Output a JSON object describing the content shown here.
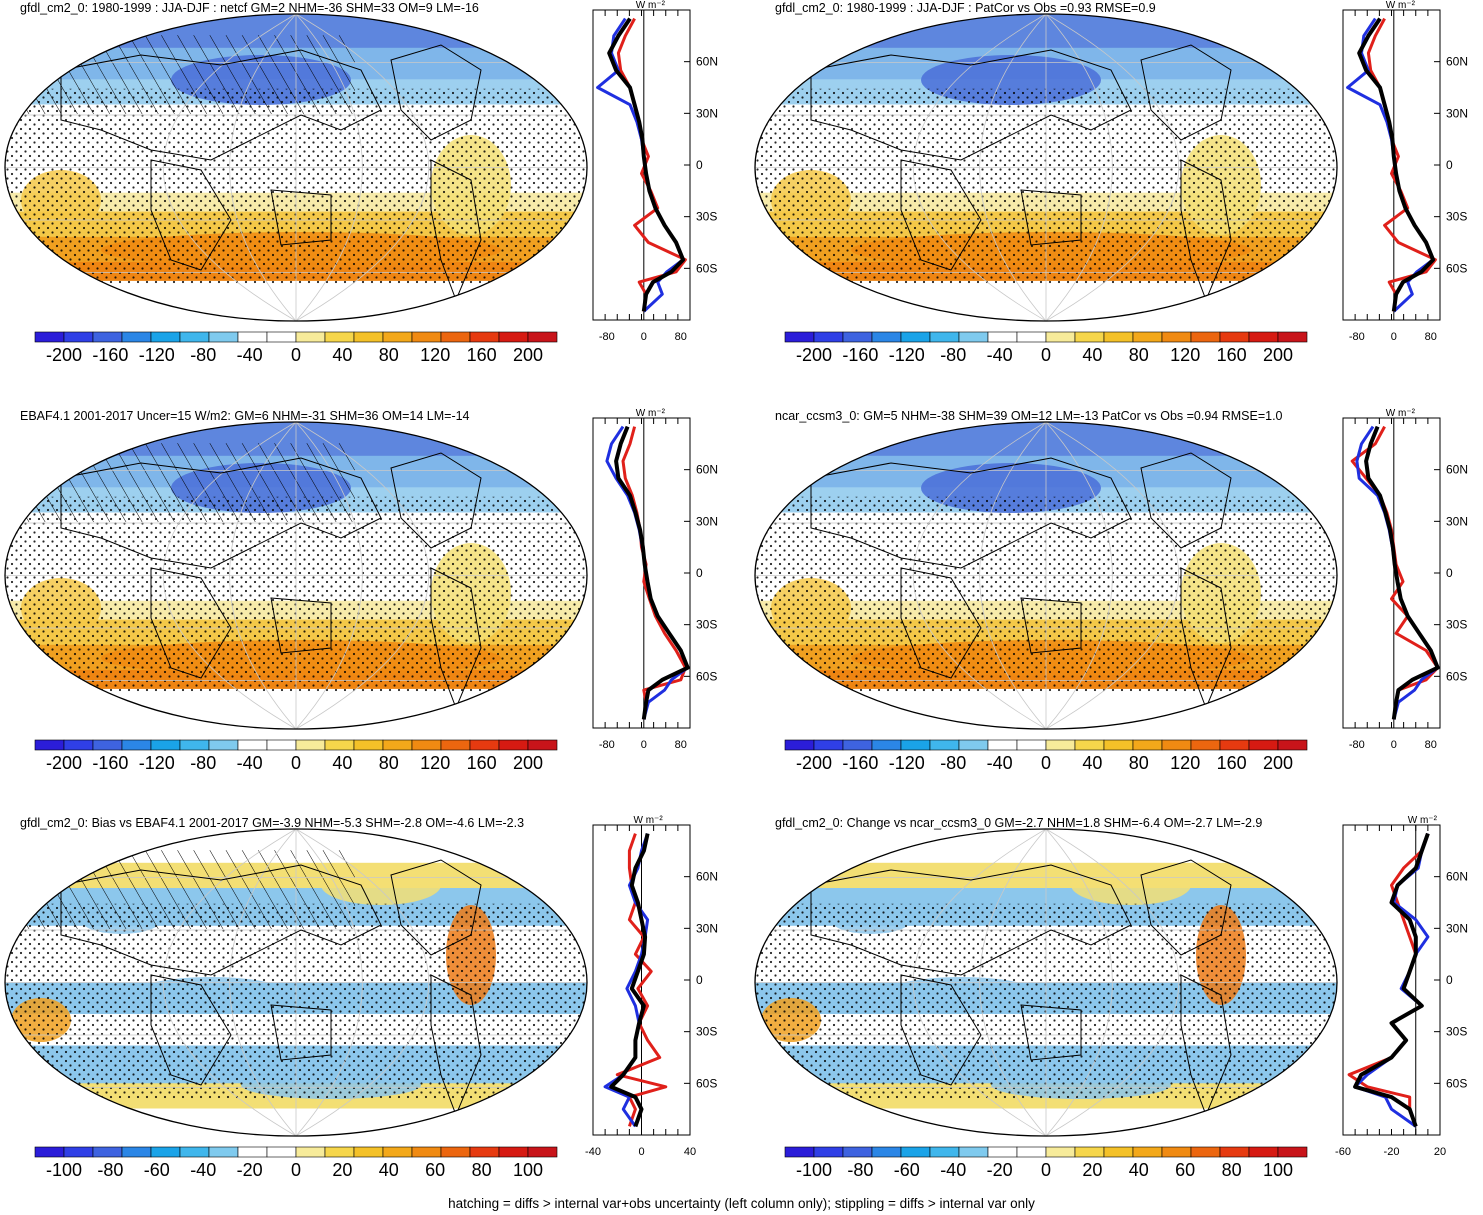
{
  "footer": "hatching = diffs > internal var+obs uncertainty (left column only); stippling = diffs > internal var only",
  "colorbar_colors_a": [
    "#2b1dd9",
    "#2f3fe6",
    "#3e63e0",
    "#2b86e6",
    "#1aa3e8",
    "#3fb6ec",
    "#7fcaee",
    "#ffffff",
    "#ffffff",
    "#f7eb9a",
    "#f6d64b",
    "#f4c128",
    "#f3a81a",
    "#f08a12",
    "#ec660f",
    "#e63a10",
    "#d61a12",
    "#c8141a"
  ],
  "colorbar_colors_b": [
    "#2b1dd9",
    "#2f3fe6",
    "#3e63e0",
    "#2b86e6",
    "#1aa3e8",
    "#3fb6ec",
    "#7fcaee",
    "#ffffff",
    "#ffffff",
    "#f7eb9a",
    "#f6d64b",
    "#f4c128",
    "#f3a81a",
    "#f08a12",
    "#ec660f",
    "#e63a10",
    "#d61a12",
    "#c8141a"
  ],
  "panels": [
    {
      "title": "gfdl_cm2_0: 1980-1999 : JJA-DJF : netcf GM=2 NHM=-36 SHM=33 OM=9 LM=-16",
      "cbar_labels": [
        "-200",
        "-160",
        "-120",
        "-80",
        "-40",
        "0",
        "40",
        "80",
        "120",
        "160",
        "200"
      ],
      "zonal_unit": "W m⁻²",
      "lat_labels": [
        "60N",
        "30N",
        "0",
        "30S",
        "60S"
      ],
      "x_labels": [
        "-80",
        "0",
        "80"
      ],
      "x_range": [
        -110,
        100
      ],
      "hatched": true
    },
    {
      "title": "gfdl_cm2_0: 1980-1999 : JJA-DJF : PatCor vs Obs =0.93 RMSE=0.9",
      "cbar_labels": [
        "-200",
        "-160",
        "-120",
        "-80",
        "-40",
        "0",
        "40",
        "80",
        "120",
        "160",
        "200"
      ],
      "zonal_unit": "W m⁻²",
      "lat_labels": [
        "60N",
        "30N",
        "0",
        "30S",
        "60S"
      ],
      "x_labels": [
        "-80",
        "0",
        "80"
      ],
      "x_range": [
        -110,
        100
      ],
      "hatched": false
    },
    {
      "title": "EBAF4.1 2001-2017 Uncer=15 W/m2: GM=6 NHM=-31 SHM=36 OM=14 LM=-14",
      "cbar_labels": [
        "-200",
        "-160",
        "-120",
        "-80",
        "-40",
        "0",
        "40",
        "80",
        "120",
        "160",
        "200"
      ],
      "zonal_unit": "W m⁻²",
      "lat_labels": [
        "60N",
        "30N",
        "0",
        "30S",
        "60S"
      ],
      "x_labels": [
        "-80",
        "0",
        "80"
      ],
      "x_range": [
        -110,
        100
      ],
      "hatched": true
    },
    {
      "title": "ncar_ccsm3_0: GM=5 NHM=-38 SHM=39 OM=12 LM=-13 PatCor vs Obs =0.94 RMSE=1.0",
      "cbar_labels": [
        "-200",
        "-160",
        "-120",
        "-80",
        "-40",
        "0",
        "40",
        "80",
        "120",
        "160",
        "200"
      ],
      "zonal_unit": "W m⁻²",
      "lat_labels": [
        "60N",
        "30N",
        "0",
        "30S",
        "60S"
      ],
      "x_labels": [
        "-80",
        "0",
        "80"
      ],
      "x_range": [
        -110,
        100
      ],
      "hatched": false
    },
    {
      "title": "gfdl_cm2_0: Bias vs EBAF4.1 2001-2017 GM=-3.9 NHM=-5.3 SHM=-2.8 OM=-4.6 LM=-2.3",
      "cbar_labels": [
        "-100",
        "-80",
        "-60",
        "-40",
        "-20",
        "0",
        "20",
        "40",
        "60",
        "80",
        "100"
      ],
      "zonal_unit": "W m⁻²",
      "lat_labels": [
        "60N",
        "30N",
        "0",
        "30S",
        "60S"
      ],
      "x_labels": [
        "-40",
        "0",
        "40"
      ],
      "x_range": [
        -40,
        40
      ],
      "hatched": true
    },
    {
      "title": "gfdl_cm2_0: Change vs ncar_ccsm3_0 GM=-2.7 NHM=1.8 SHM=-6.4 OM=-2.7 LM=-2.9",
      "cbar_labels": [
        "-100",
        "-80",
        "-60",
        "-40",
        "-20",
        "0",
        "20",
        "40",
        "60",
        "80",
        "100"
      ],
      "zonal_unit": "W m⁻²",
      "lat_labels": [
        "60N",
        "30N",
        "0",
        "30S",
        "60S"
      ],
      "x_labels": [
        "-60",
        "-20",
        "20"
      ],
      "x_range": [
        -60,
        20
      ],
      "hatched": false
    }
  ],
  "chart_data": [
    {
      "type": "line",
      "title": "gfdl_cm2_0: 1980-1999 : JJA-DJF : netcf GM=2 NHM=-36 SHM=33 OM=9 LM=-16",
      "xlabel": "W m⁻²",
      "xlim": [
        -110,
        100
      ],
      "ylim": [
        -90,
        90
      ],
      "series": [
        {
          "color": "#000000",
          "lat": [
            85,
            75,
            65,
            55,
            45,
            35,
            25,
            15,
            5,
            -5,
            -15,
            -25,
            -35,
            -45,
            -55,
            -62,
            -68,
            -75,
            -85
          ],
          "values": [
            -30,
            -55,
            -75,
            -60,
            -30,
            -20,
            -10,
            -3,
            0,
            5,
            12,
            25,
            45,
            70,
            85,
            60,
            20,
            5,
            0
          ]
        },
        {
          "color": "#e0201a",
          "lat": [
            85,
            75,
            65,
            55,
            45,
            35,
            25,
            15,
            5,
            -5,
            -15,
            -25,
            -35,
            -45,
            -55,
            -62,
            -68,
            -75,
            -85
          ],
          "values": [
            -20,
            -40,
            -55,
            -50,
            -30,
            -20,
            -12,
            -5,
            10,
            -5,
            15,
            30,
            -20,
            10,
            90,
            70,
            -10,
            5,
            0
          ]
        },
        {
          "color": "#1f2fe0",
          "lat": [
            85,
            75,
            65,
            55,
            45,
            35,
            25,
            15,
            5,
            -5,
            -15,
            -25,
            -35,
            -45,
            -55,
            -62,
            -68,
            -75,
            -85
          ],
          "values": [
            -40,
            -65,
            -70,
            -55,
            -100,
            -30,
            -15,
            -5,
            0,
            5,
            12,
            25,
            45,
            70,
            85,
            50,
            30,
            40,
            0
          ]
        }
      ]
    },
    {
      "type": "line",
      "title": "gfdl_cm2_0: 1980-1999 : JJA-DJF : PatCor vs Obs =0.93 RMSE=0.9",
      "xlabel": "W m⁻²",
      "xlim": [
        -110,
        100
      ],
      "ylim": [
        -90,
        90
      ],
      "series": [
        {
          "color": "#000000",
          "lat": [
            85,
            75,
            65,
            55,
            45,
            35,
            25,
            15,
            5,
            -5,
            -15,
            -25,
            -35,
            -45,
            -55,
            -62,
            -68,
            -75,
            -85
          ],
          "values": [
            -30,
            -55,
            -75,
            -60,
            -30,
            -20,
            -10,
            -3,
            0,
            5,
            12,
            25,
            45,
            70,
            85,
            60,
            20,
            5,
            0
          ]
        },
        {
          "color": "#e0201a",
          "lat": [
            85,
            75,
            65,
            55,
            45,
            35,
            25,
            15,
            5,
            -5,
            -15,
            -25,
            -35,
            -45,
            -55,
            -62,
            -68,
            -75,
            -85
          ],
          "values": [
            -20,
            -40,
            -55,
            -50,
            -30,
            -20,
            -12,
            -5,
            10,
            -5,
            15,
            30,
            -20,
            10,
            90,
            70,
            -10,
            5,
            0
          ]
        },
        {
          "color": "#1f2fe0",
          "lat": [
            85,
            75,
            65,
            55,
            45,
            35,
            25,
            15,
            5,
            -5,
            -15,
            -25,
            -35,
            -45,
            -55,
            -62,
            -68,
            -75,
            -85
          ],
          "values": [
            -40,
            -65,
            -70,
            -55,
            -100,
            -30,
            -15,
            -5,
            0,
            5,
            12,
            25,
            45,
            70,
            85,
            50,
            30,
            40,
            0
          ]
        }
      ]
    },
    {
      "type": "line",
      "title": "EBAF4.1 2001-2017 Uncer=15 W/m2: GM=6 NHM=-31 SHM=36 OM=14 LM=-14",
      "xlabel": "W m⁻²",
      "xlim": [
        -110,
        100
      ],
      "ylim": [
        -90,
        90
      ],
      "series": [
        {
          "color": "#000000",
          "lat": [
            85,
            75,
            65,
            55,
            45,
            35,
            25,
            15,
            5,
            -5,
            -15,
            -25,
            -35,
            -45,
            -55,
            -62,
            -68,
            -75,
            -85
          ],
          "values": [
            -35,
            -50,
            -60,
            -55,
            -30,
            -18,
            -8,
            -2,
            2,
            8,
            15,
            30,
            55,
            80,
            95,
            40,
            10,
            5,
            0
          ]
        },
        {
          "color": "#e0201a",
          "lat": [
            85,
            75,
            65,
            55,
            45,
            35,
            25,
            15,
            5,
            -5,
            -15,
            -25,
            -35,
            -45,
            -55,
            -62,
            -68,
            -75,
            -85
          ],
          "values": [
            -20,
            -30,
            -45,
            -40,
            -25,
            -15,
            -8,
            -5,
            5,
            0,
            12,
            25,
            45,
            70,
            90,
            80,
            0,
            5,
            0
          ]
        },
        {
          "color": "#1f2fe0",
          "lat": [
            85,
            75,
            65,
            55,
            45,
            35,
            25,
            15,
            5,
            -5,
            -15,
            -25,
            -35,
            -45,
            -55,
            -62,
            -68,
            -75,
            -85
          ],
          "values": [
            -45,
            -70,
            -80,
            -60,
            -35,
            -20,
            -10,
            -3,
            2,
            8,
            15,
            30,
            55,
            80,
            95,
            60,
            45,
            10,
            0
          ]
        }
      ]
    },
    {
      "type": "line",
      "title": "ncar_ccsm3_0: GM=5 NHM=-38 SHM=39 OM=12 LM=-13 PatCor vs Obs =0.94 RMSE=1.0",
      "xlabel": "W m⁻²",
      "xlim": [
        -110,
        100
      ],
      "ylim": [
        -90,
        90
      ],
      "series": [
        {
          "color": "#000000",
          "lat": [
            85,
            75,
            65,
            55,
            45,
            35,
            25,
            15,
            5,
            -5,
            -15,
            -25,
            -35,
            -45,
            -55,
            -62,
            -68,
            -75,
            -85
          ],
          "values": [
            -35,
            -50,
            -60,
            -55,
            -30,
            -18,
            -8,
            -2,
            2,
            8,
            15,
            30,
            55,
            80,
            95,
            40,
            10,
            5,
            0
          ]
        },
        {
          "color": "#e0201a",
          "lat": [
            85,
            75,
            65,
            55,
            45,
            35,
            25,
            15,
            5,
            -5,
            -15,
            -25,
            -35,
            -45,
            -55,
            -62,
            -68,
            -75,
            -85
          ],
          "values": [
            -20,
            -40,
            -90,
            -60,
            -30,
            -15,
            -5,
            0,
            5,
            20,
            -5,
            30,
            5,
            70,
            95,
            70,
            10,
            5,
            0
          ]
        },
        {
          "color": "#1f2fe0",
          "lat": [
            85,
            75,
            65,
            55,
            45,
            35,
            25,
            15,
            5,
            -5,
            -15,
            -25,
            -35,
            -45,
            -55,
            -62,
            -68,
            -75,
            -85
          ],
          "values": [
            -45,
            -70,
            -80,
            -75,
            -35,
            -20,
            -10,
            -3,
            2,
            8,
            15,
            30,
            55,
            80,
            95,
            60,
            45,
            10,
            0
          ]
        }
      ]
    },
    {
      "type": "line",
      "title": "gfdl_cm2_0: Bias vs EBAF4.1 2001-2017 GM=-3.9 NHM=-5.3 SHM=-2.8 OM=-4.6 LM=-2.3",
      "xlabel": "W m⁻²",
      "xlim": [
        -40,
        40
      ],
      "ylim": [
        -90,
        90
      ],
      "series": [
        {
          "color": "#000000",
          "lat": [
            85,
            75,
            65,
            55,
            45,
            35,
            25,
            15,
            5,
            -5,
            -15,
            -25,
            -35,
            -45,
            -55,
            -62,
            -68,
            -75,
            -85
          ],
          "values": [
            5,
            2,
            -5,
            -8,
            -3,
            0,
            3,
            2,
            -3,
            -8,
            2,
            -2,
            -5,
            -5,
            -15,
            -25,
            -5,
            0,
            -5
          ]
        },
        {
          "color": "#e0201a",
          "lat": [
            85,
            75,
            65,
            55,
            45,
            35,
            25,
            15,
            5,
            -5,
            -15,
            -25,
            -35,
            -45,
            -55,
            -62,
            -68,
            -75,
            -85
          ],
          "values": [
            -5,
            -10,
            -10,
            -8,
            -5,
            -10,
            2,
            -5,
            8,
            -3,
            5,
            -2,
            5,
            15,
            -20,
            20,
            -10,
            -5,
            -10
          ]
        },
        {
          "color": "#1f2fe0",
          "lat": [
            85,
            75,
            65,
            55,
            45,
            35,
            25,
            15,
            5,
            -5,
            -15,
            -25,
            -35,
            -45,
            -55,
            -62,
            -68,
            -75,
            -85
          ],
          "values": [
            5,
            0,
            -3,
            -10,
            -5,
            5,
            3,
            0,
            -5,
            -12,
            -5,
            -2,
            -5,
            -5,
            -15,
            -30,
            -10,
            -15,
            -5
          ]
        }
      ]
    },
    {
      "type": "line",
      "title": "gfdl_cm2_0: Change vs ncar_ccsm3_0 GM=-2.7 NHM=1.8 SHM=-6.4 OM=-2.7 LM=-2.9",
      "xlabel": "W m⁻²",
      "xlim": [
        -60,
        20
      ],
      "ylim": [
        -90,
        90
      ],
      "series": [
        {
          "color": "#000000",
          "lat": [
            85,
            75,
            65,
            55,
            45,
            35,
            25,
            15,
            5,
            -5,
            -15,
            -25,
            -35,
            -45,
            -55,
            -62,
            -68,
            -75,
            -85
          ],
          "values": [
            10,
            5,
            0,
            -15,
            -20,
            -5,
            0,
            0,
            -5,
            -10,
            5,
            -20,
            -8,
            -20,
            -45,
            -50,
            -20,
            -5,
            0
          ]
        },
        {
          "color": "#e0201a",
          "lat": [
            85,
            75,
            65,
            55,
            45,
            35,
            25,
            15,
            5,
            -5,
            -15,
            -25,
            -35,
            -45,
            -55,
            -62,
            -68,
            -75,
            -85
          ],
          "values": [
            10,
            5,
            -10,
            -20,
            -15,
            -10,
            -5,
            0,
            -5,
            -10,
            5,
            -20,
            -8,
            -20,
            -55,
            -40,
            -5,
            -5,
            0
          ]
        },
        {
          "color": "#1f2fe0",
          "lat": [
            85,
            75,
            65,
            55,
            45,
            35,
            25,
            15,
            5,
            -5,
            -15,
            -25,
            -35,
            -45,
            -55,
            -62,
            -68,
            -75,
            -85
          ],
          "values": [
            10,
            5,
            2,
            -15,
            -18,
            0,
            10,
            0,
            -5,
            -12,
            5,
            -20,
            -8,
            -20,
            -40,
            -50,
            -25,
            -20,
            0
          ]
        }
      ]
    }
  ]
}
